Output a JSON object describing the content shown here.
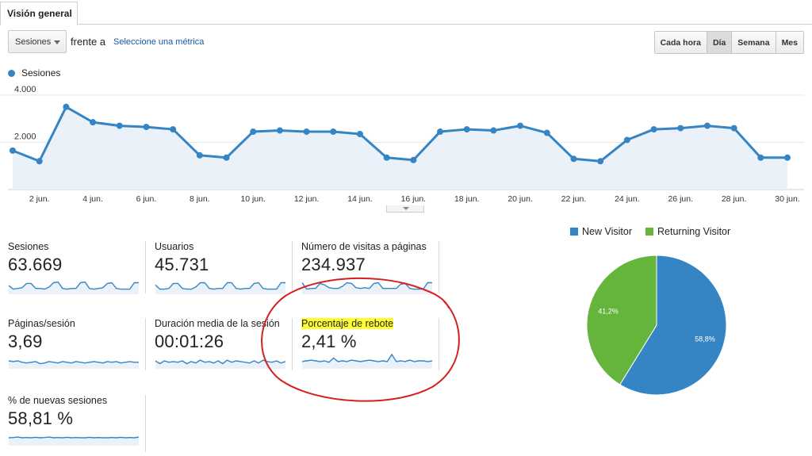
{
  "tab": {
    "label": "Visión general"
  },
  "controls": {
    "metric_select": "Sesiones",
    "vs_label": "frente a",
    "select_metric_link": "Seleccione una métrica",
    "granularity": [
      {
        "label": "Cada hora",
        "active": false
      },
      {
        "label": "Día",
        "active": true
      },
      {
        "label": "Semana",
        "active": false
      },
      {
        "label": "Mes",
        "active": false
      }
    ]
  },
  "chart_data": [
    {
      "type": "area",
      "title": "",
      "series": [
        {
          "name": "Sesiones",
          "color": "#3585c4",
          "values": [
            1650,
            1200,
            3500,
            2850,
            2700,
            2650,
            2550,
            1450,
            1350,
            2450,
            2500,
            2450,
            2450,
            2350,
            1350,
            1250,
            2450,
            2550,
            2500,
            2700,
            2400,
            1300,
            1200,
            2100,
            2550,
            2600,
            2700,
            2600,
            1350,
            1350
          ]
        }
      ],
      "x": [
        "1 jun.",
        "2 jun.",
        "3 jun.",
        "4 jun.",
        "5 jun.",
        "6 jun.",
        "7 jun.",
        "8 jun.",
        "9 jun.",
        "10 jun.",
        "11 jun.",
        "12 jun.",
        "13 jun.",
        "14 jun.",
        "15 jun.",
        "16 jun.",
        "17 jun.",
        "18 jun.",
        "19 jun.",
        "20 jun.",
        "21 jun.",
        "22 jun.",
        "23 jun.",
        "24 jun.",
        "25 jun.",
        "26 jun.",
        "27 jun.",
        "28 jun.",
        "29 jun.",
        "30 jun."
      ],
      "x_tick_labels": [
        "2 jun.",
        "4 jun.",
        "6 jun.",
        "8 jun.",
        "10 jun.",
        "12 jun.",
        "14 jun.",
        "16 jun.",
        "18 jun.",
        "20 jun.",
        "22 jun.",
        "24 jun.",
        "26 jun.",
        "28 jun.",
        "30 jun."
      ],
      "y_tick_labels": [
        "2.000",
        "4.000"
      ],
      "y_ticks": [
        2000,
        4000
      ],
      "ylim": [
        0,
        4500
      ],
      "grid": true,
      "legend": "top-left"
    },
    {
      "type": "pie",
      "legend": "top",
      "slices": [
        {
          "name": "New Visitor",
          "value": 58.8,
          "label": "58,8%",
          "color": "#3585c4"
        },
        {
          "name": "Returning Visitor",
          "value": 41.2,
          "label": "41,2%",
          "color": "#65b43c"
        }
      ]
    }
  ],
  "metrics": [
    {
      "label": "Sesiones",
      "value": "63.669",
      "highlight": false,
      "spark": [
        0.55,
        0.3,
        0.35,
        0.4,
        0.7,
        0.7,
        0.35,
        0.35,
        0.3,
        0.45,
        0.75,
        0.8,
        0.35,
        0.3,
        0.35,
        0.35,
        0.75,
        0.8,
        0.35,
        0.3,
        0.35,
        0.4,
        0.7,
        0.75,
        0.35,
        0.3,
        0.3,
        0.3,
        0.75,
        0.75
      ]
    },
    {
      "label": "Usuarios",
      "value": "45.731",
      "highlight": false,
      "spark": [
        0.6,
        0.3,
        0.3,
        0.35,
        0.7,
        0.7,
        0.35,
        0.3,
        0.3,
        0.45,
        0.75,
        0.75,
        0.35,
        0.3,
        0.35,
        0.35,
        0.75,
        0.75,
        0.35,
        0.3,
        0.35,
        0.35,
        0.7,
        0.75,
        0.35,
        0.3,
        0.3,
        0.3,
        0.75,
        0.75
      ]
    },
    {
      "label": "Número de visitas a páginas",
      "value": "234.937",
      "highlight": false,
      "spark": [
        0.75,
        0.3,
        0.35,
        0.35,
        0.7,
        0.6,
        0.4,
        0.35,
        0.35,
        0.5,
        0.75,
        0.7,
        0.4,
        0.35,
        0.4,
        0.35,
        0.7,
        0.75,
        0.35,
        0.35,
        0.35,
        0.35,
        0.65,
        0.7,
        0.35,
        0.3,
        0.3,
        0.3,
        0.75,
        0.75
      ]
    },
    {
      "label": "Páginas/sesión",
      "value": "3,69",
      "highlight": false,
      "spark": [
        0.5,
        0.45,
        0.5,
        0.4,
        0.35,
        0.4,
        0.45,
        0.3,
        0.35,
        0.45,
        0.4,
        0.35,
        0.45,
        0.4,
        0.35,
        0.45,
        0.4,
        0.35,
        0.4,
        0.45,
        0.4,
        0.35,
        0.45,
        0.4,
        0.45,
        0.35,
        0.4,
        0.45,
        0.4,
        0.4
      ]
    },
    {
      "label": "Duración media de la sesión",
      "value": "00:01:26",
      "highlight": false,
      "spark": [
        0.5,
        0.3,
        0.5,
        0.4,
        0.45,
        0.4,
        0.5,
        0.3,
        0.45,
        0.35,
        0.55,
        0.4,
        0.45,
        0.35,
        0.5,
        0.3,
        0.55,
        0.4,
        0.5,
        0.45,
        0.4,
        0.35,
        0.5,
        0.35,
        0.55,
        0.45,
        0.4,
        0.5,
        0.35,
        0.45
      ]
    },
    {
      "label": "Porcentaje de rebote",
      "value": "2,41 %",
      "highlight": true,
      "spark": [
        0.45,
        0.5,
        0.55,
        0.5,
        0.45,
        0.5,
        0.4,
        0.7,
        0.45,
        0.5,
        0.45,
        0.55,
        0.5,
        0.45,
        0.5,
        0.55,
        0.5,
        0.45,
        0.5,
        0.45,
        0.95,
        0.45,
        0.5,
        0.45,
        0.55,
        0.45,
        0.5,
        0.5,
        0.45,
        0.5
      ]
    },
    {
      "label": "% de nuevas sesiones",
      "value": "58,81 %",
      "highlight": false,
      "spark": [
        0.5,
        0.52,
        0.55,
        0.5,
        0.52,
        0.5,
        0.53,
        0.5,
        0.52,
        0.55,
        0.5,
        0.52,
        0.5,
        0.53,
        0.5,
        0.52,
        0.5,
        0.5,
        0.53,
        0.5,
        0.52,
        0.5,
        0.5,
        0.52,
        0.5,
        0.53,
        0.5,
        0.52,
        0.5,
        0.55
      ]
    }
  ],
  "annotation": {
    "color": "#d62020"
  }
}
